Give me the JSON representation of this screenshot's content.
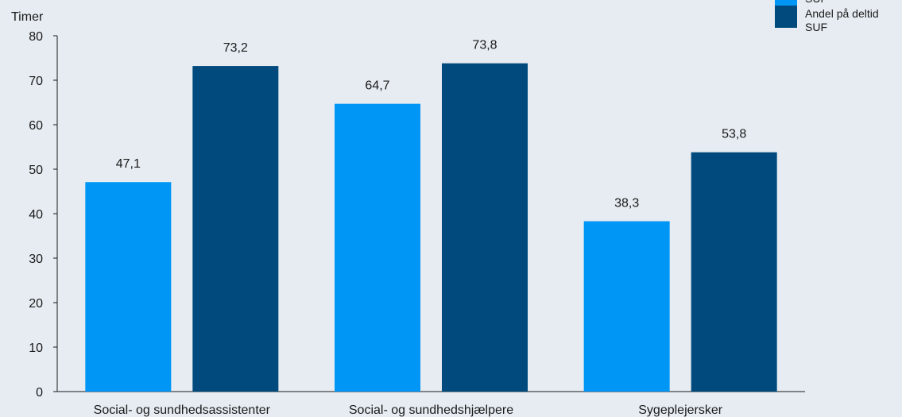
{
  "chart_data": {
    "type": "bar",
    "ylabel": "Timer",
    "ylim": [
      0,
      80
    ],
    "yticks": [
      0,
      10,
      20,
      30,
      40,
      50,
      60,
      70,
      80
    ],
    "categories": [
      "Social- og sundhedsassistenter",
      "Social- og sundhedshjælpere",
      "Sygeplejersker"
    ],
    "series": [
      {
        "name": "SUF",
        "color": "#0096f5",
        "values": [
          47.1,
          64.7,
          38.3
        ],
        "labels": [
          "47,1",
          "64,7",
          "38,3"
        ]
      },
      {
        "name": "Andel på deltid SUF",
        "color": "#004a7e",
        "values": [
          73.2,
          73.8,
          53.8
        ],
        "labels": [
          "73,2",
          "73,8",
          "53,8"
        ]
      }
    ],
    "legend_lines": [
      [
        "SUF"
      ],
      [
        "Andel på deltid",
        "SUF"
      ]
    ],
    "legend_position": "top-right",
    "grid": false
  }
}
